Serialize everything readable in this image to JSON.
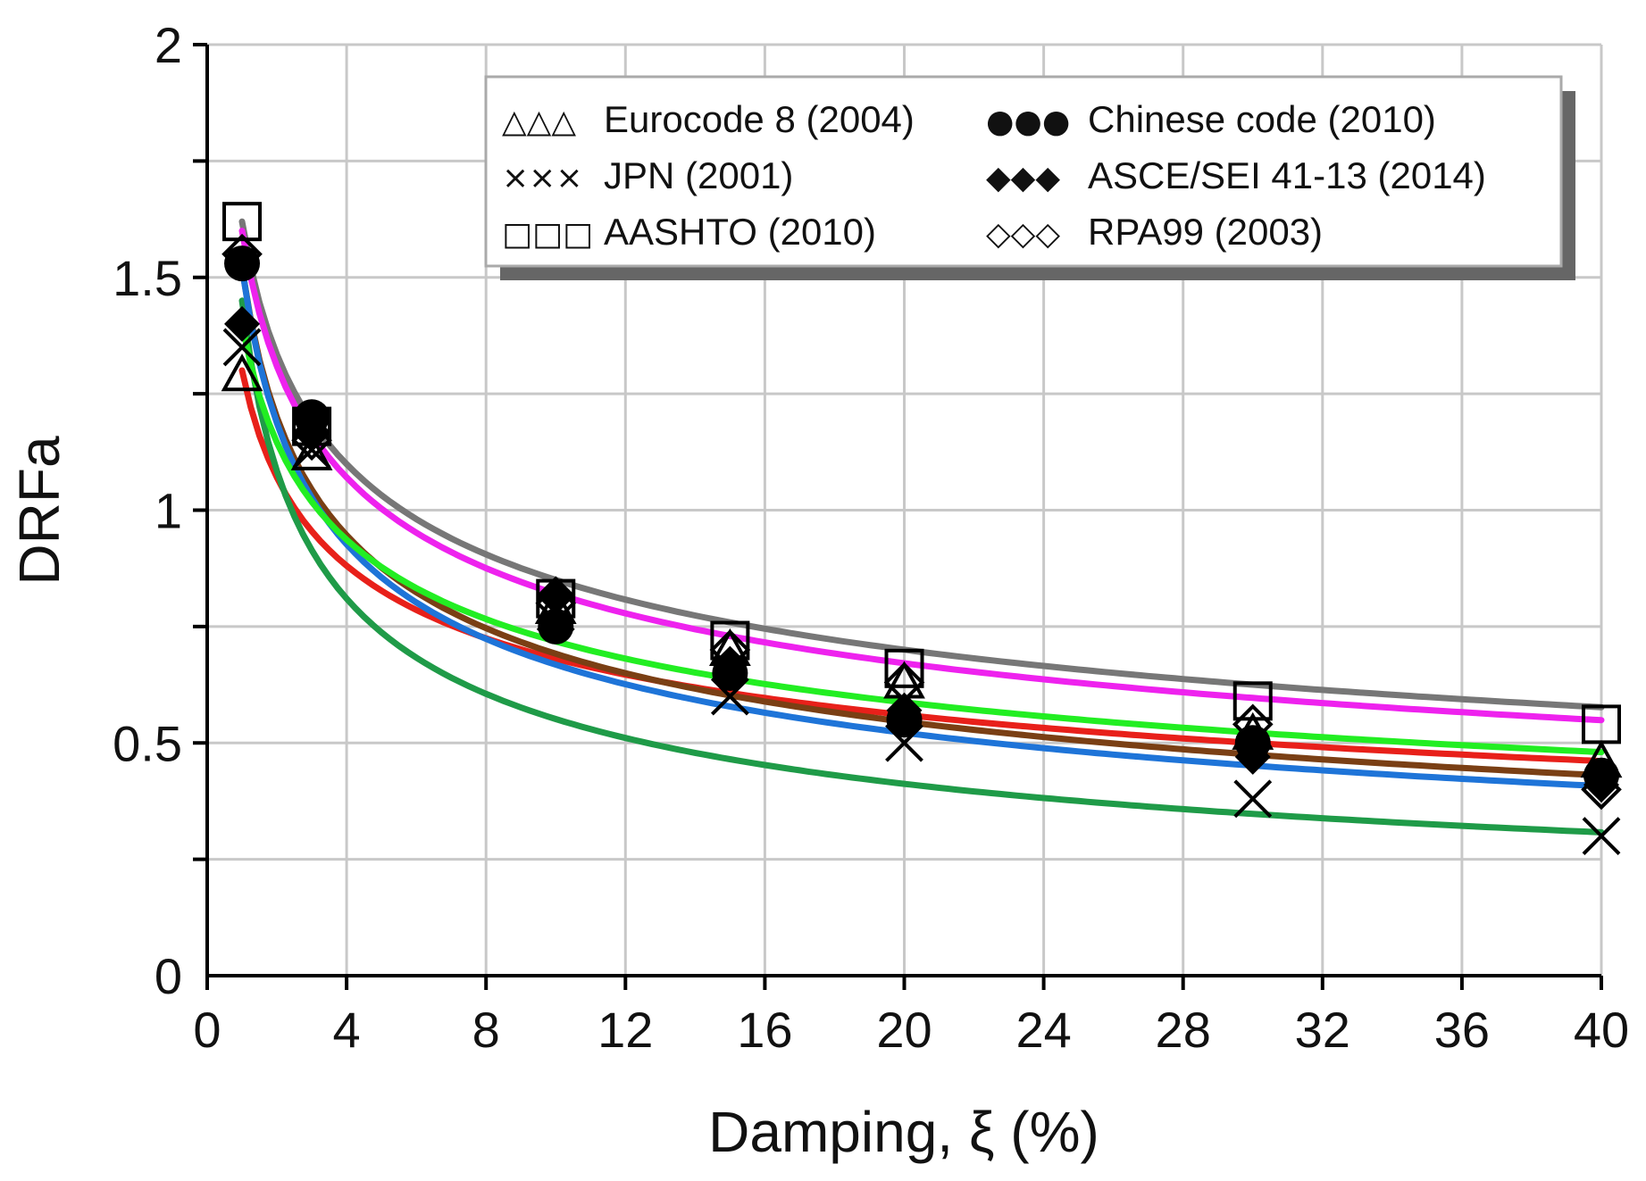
{
  "chart_data": {
    "type": "scatter",
    "title": "",
    "xlabel": "Damping, ξ (%)",
    "ylabel": "DRFa",
    "xlim": [
      0,
      40
    ],
    "ylim": [
      0,
      2
    ],
    "xticks": [
      "0",
      "4",
      "8",
      "12",
      "16",
      "20",
      "24",
      "28",
      "32",
      "36",
      "40"
    ],
    "yticks": [
      "0",
      "0.5",
      "1",
      "1.5",
      "2"
    ],
    "grid": true,
    "legend_position": "top-right",
    "series": [
      {
        "name": "Eurocode 8 (2004)",
        "legend_symbol": "△△△",
        "marker": "open-triangle",
        "fit_color": "#e8201a",
        "x": [
          1,
          3,
          10,
          15,
          20,
          30,
          40
        ],
        "y": [
          1.29,
          1.12,
          0.79,
          0.7,
          0.63,
          0.52,
          0.46
        ],
        "fit": {
          "a": 1.3,
          "b": 0.281
        }
      },
      {
        "name": "Chinese code (2010)",
        "legend_symbol": "●●●",
        "marker": "filled-circle",
        "fit_color": "#7a3f14",
        "x": [
          1,
          3,
          10,
          15,
          20,
          30,
          40
        ],
        "y": [
          1.53,
          1.2,
          0.75,
          0.65,
          0.55,
          0.5,
          0.43
        ],
        "fit": {
          "a": 1.52,
          "b": 0.342
        }
      },
      {
        "name": "JPN (2001)",
        "legend_symbol": "×××",
        "marker": "cross",
        "fit_color": "#1f9b48",
        "x": [
          1,
          3,
          10,
          15,
          20,
          30,
          40
        ],
        "y": [
          1.35,
          1.13,
          0.78,
          0.6,
          0.5,
          0.38,
          0.3
        ],
        "fit": {
          "a": 1.45,
          "b": 0.42
        }
      },
      {
        "name": "ASCE/SEI 41-13 (2014)",
        "legend_symbol": "◆◆◆",
        "marker": "filled-diamond",
        "fit_color": "#1e74d8",
        "x": [
          1,
          3,
          10,
          15,
          20,
          30,
          40
        ],
        "y": [
          1.4,
          1.17,
          0.82,
          0.67,
          0.57,
          0.47,
          0.41
        ],
        "fit": {
          "a": 1.52,
          "b": 0.357
        }
      },
      {
        "name": "AASHTO (2010)",
        "legend_symbol": "□□□",
        "marker": "open-square",
        "fit_color": "#777777",
        "x": [
          1,
          3,
          10,
          15,
          20,
          30,
          40
        ],
        "y": [
          1.62,
          1.18,
          0.81,
          0.72,
          0.66,
          0.59,
          0.54
        ],
        "fit": {
          "a": 1.62,
          "b": 0.28
        }
      },
      {
        "name": "RPA99 (2003)",
        "legend_symbol": "◇◇◇",
        "marker": "open-diamond",
        "fit_color": "#ee22ee",
        "x": [
          1,
          3,
          10,
          15,
          20,
          30,
          40
        ],
        "y": [
          1.55,
          1.15,
          0.8,
          0.7,
          0.63,
          0.54,
          0.4
        ],
        "fit": {
          "a": 1.6,
          "b": 0.29
        }
      }
    ],
    "extra_fit_lines": [
      {
        "color": "#22ee22",
        "fit": {
          "a": 1.4,
          "b": 0.29
        }
      }
    ]
  }
}
